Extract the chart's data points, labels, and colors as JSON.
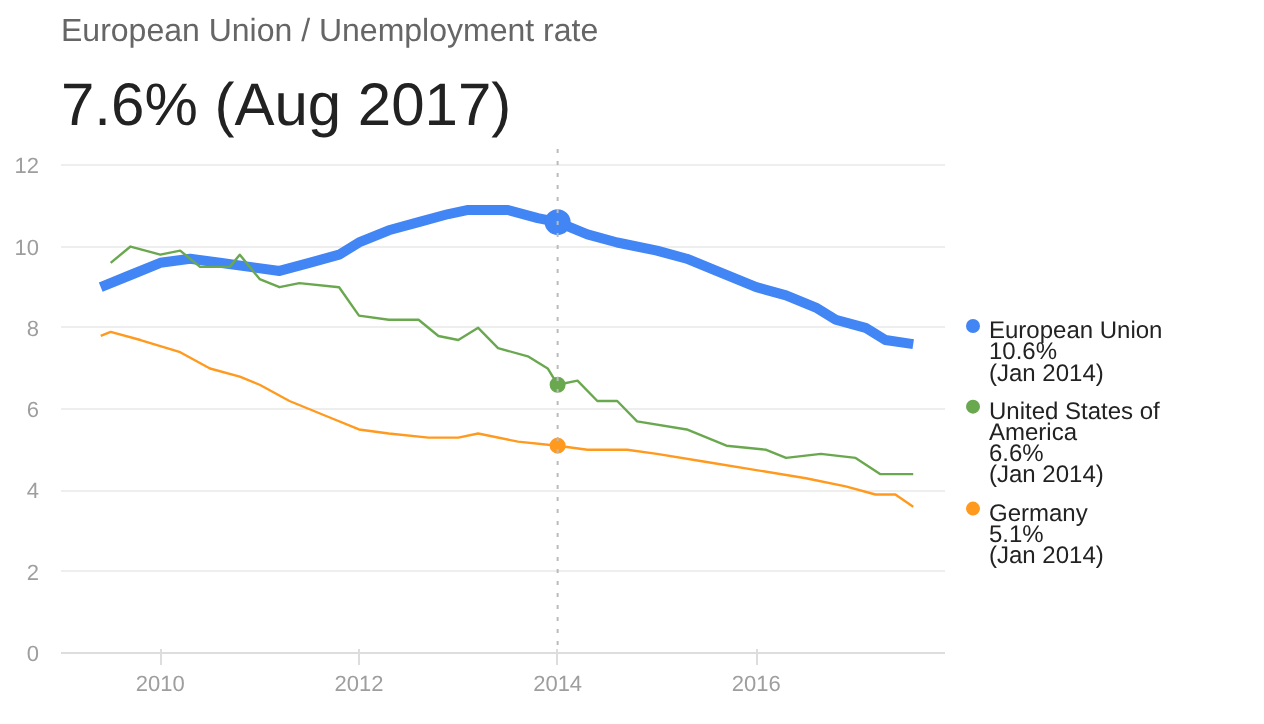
{
  "chart_data": {
    "type": "line",
    "title": "European Union / Unemployment rate",
    "subtitle": "7.6% (Aug 2017)",
    "xlim": [
      2009.0,
      2017.9
    ],
    "xticks": [
      2010,
      2012,
      2014,
      2016
    ],
    "ylim": [
      0,
      12.4
    ],
    "yticks": [
      0,
      2,
      4,
      6,
      8,
      10,
      12
    ],
    "grid": "y",
    "legend": "right",
    "series": [
      {
        "name": "European Union",
        "color": "#4285f4",
        "x": [
          2009.4,
          2009.7,
          2010.0,
          2010.3,
          2010.6,
          2010.9,
          2011.2,
          2011.5,
          2011.8,
          2012.0,
          2012.3,
          2012.6,
          2012.9,
          2013.1,
          2013.5,
          2013.8,
          2014.0,
          2014.3,
          2014.6,
          2015.0,
          2015.3,
          2015.6,
          2016.0,
          2016.3,
          2016.6,
          2016.8,
          2017.1,
          2017.3,
          2017.58
        ],
        "values": [
          9.0,
          9.3,
          9.6,
          9.7,
          9.6,
          9.5,
          9.4,
          9.6,
          9.8,
          10.1,
          10.4,
          10.6,
          10.8,
          10.9,
          10.9,
          10.7,
          10.6,
          10.3,
          10.1,
          9.9,
          9.7,
          9.4,
          9.0,
          8.8,
          8.5,
          8.2,
          8.0,
          7.7,
          7.6
        ]
      },
      {
        "name": "United States of America",
        "color": "#6aa84f",
        "x": [
          2009.5,
          2009.7,
          2010.0,
          2010.2,
          2010.4,
          2010.7,
          2010.8,
          2011.0,
          2011.2,
          2011.4,
          2011.8,
          2012.0,
          2012.3,
          2012.6,
          2012.8,
          2013.0,
          2013.2,
          2013.4,
          2013.7,
          2013.9,
          2014.0,
          2014.2,
          2014.4,
          2014.6,
          2014.8,
          2015.3,
          2015.7,
          2016.1,
          2016.3,
          2016.65,
          2017.0,
          2017.25,
          2017.58
        ],
        "values": [
          9.6,
          10.0,
          9.8,
          9.9,
          9.5,
          9.5,
          9.8,
          9.2,
          9.0,
          9.1,
          9.0,
          8.3,
          8.2,
          8.2,
          7.8,
          7.7,
          8.0,
          7.5,
          7.3,
          7.0,
          6.6,
          6.7,
          6.2,
          6.2,
          5.7,
          5.5,
          5.1,
          5.0,
          4.8,
          4.9,
          4.8,
          4.4,
          4.4
        ]
      },
      {
        "name": "Germany",
        "color": "#ff9a1f",
        "x": [
          2009.4,
          2009.5,
          2009.8,
          2010.2,
          2010.5,
          2010.8,
          2011.0,
          2011.3,
          2011.7,
          2012.0,
          2012.3,
          2012.7,
          2013.0,
          2013.2,
          2013.6,
          2014.0,
          2014.3,
          2014.7,
          2015.0,
          2015.5,
          2016.0,
          2016.5,
          2016.9,
          2017.2,
          2017.4,
          2017.58
        ],
        "values": [
          7.8,
          7.9,
          7.7,
          7.4,
          7.0,
          6.8,
          6.6,
          6.2,
          5.8,
          5.5,
          5.4,
          5.3,
          5.3,
          5.4,
          5.2,
          5.1,
          5.0,
          5.0,
          4.9,
          4.7,
          4.5,
          4.3,
          4.1,
          3.9,
          3.9,
          3.6
        ]
      }
    ],
    "ref_lines": [
      {
        "axis": "x",
        "value": 2014.0,
        "color": "#bbbbbb",
        "line_style": "dotted"
      }
    ],
    "annotations": [
      "10.6%\n(Jan 2014)",
      "6.6%\n(Jan 2014)",
      "5.1%\n(Jan 2014)"
    ]
  }
}
